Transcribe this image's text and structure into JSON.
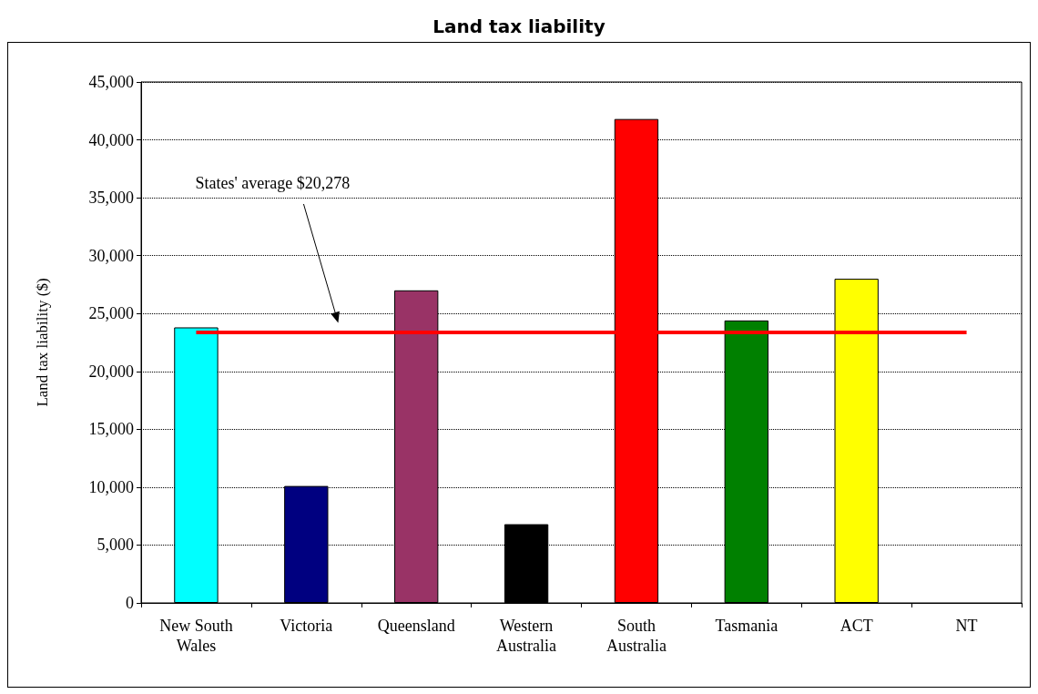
{
  "chart_data": {
    "type": "bar",
    "title": "Land tax liability",
    "ylabel": "Land tax liability ($)",
    "categories": [
      "New South\nWales",
      "Victoria",
      "Queensland",
      "Western\nAustralia",
      "South\nAustralia",
      "Tasmania",
      "ACT",
      "NT"
    ],
    "values": [
      23800,
      10100,
      27000,
      6800,
      41800,
      24400,
      28000,
      null
    ],
    "colors": [
      "#00ffff",
      "#000080",
      "#993366",
      "#000000",
      "#ff0000",
      "#008000",
      "#ffff00",
      null
    ],
    "ylim": [
      0,
      45000
    ],
    "yticks": [
      0,
      {
        "value": 5000,
        "label": "5,000"
      },
      {
        "value": 10000,
        "label": "10,000"
      },
      {
        "value": 15000,
        "label": "15,000"
      },
      {
        "value": 20000,
        "label": "20,000"
      },
      {
        "value": 25000,
        "label": "25,000"
      },
      {
        "value": 30000,
        "label": "30,000"
      },
      {
        "value": 35000,
        "label": "35,000"
      },
      {
        "value": 40000,
        "label": "40,000"
      },
      {
        "value": 45000,
        "label": "45,000"
      }
    ],
    "grid": "y",
    "ref_lines": [
      {
        "axis": "y",
        "value": 23400,
        "color": "#ff0000"
      }
    ],
    "annotations": [
      "States' average $20,278"
    ]
  }
}
